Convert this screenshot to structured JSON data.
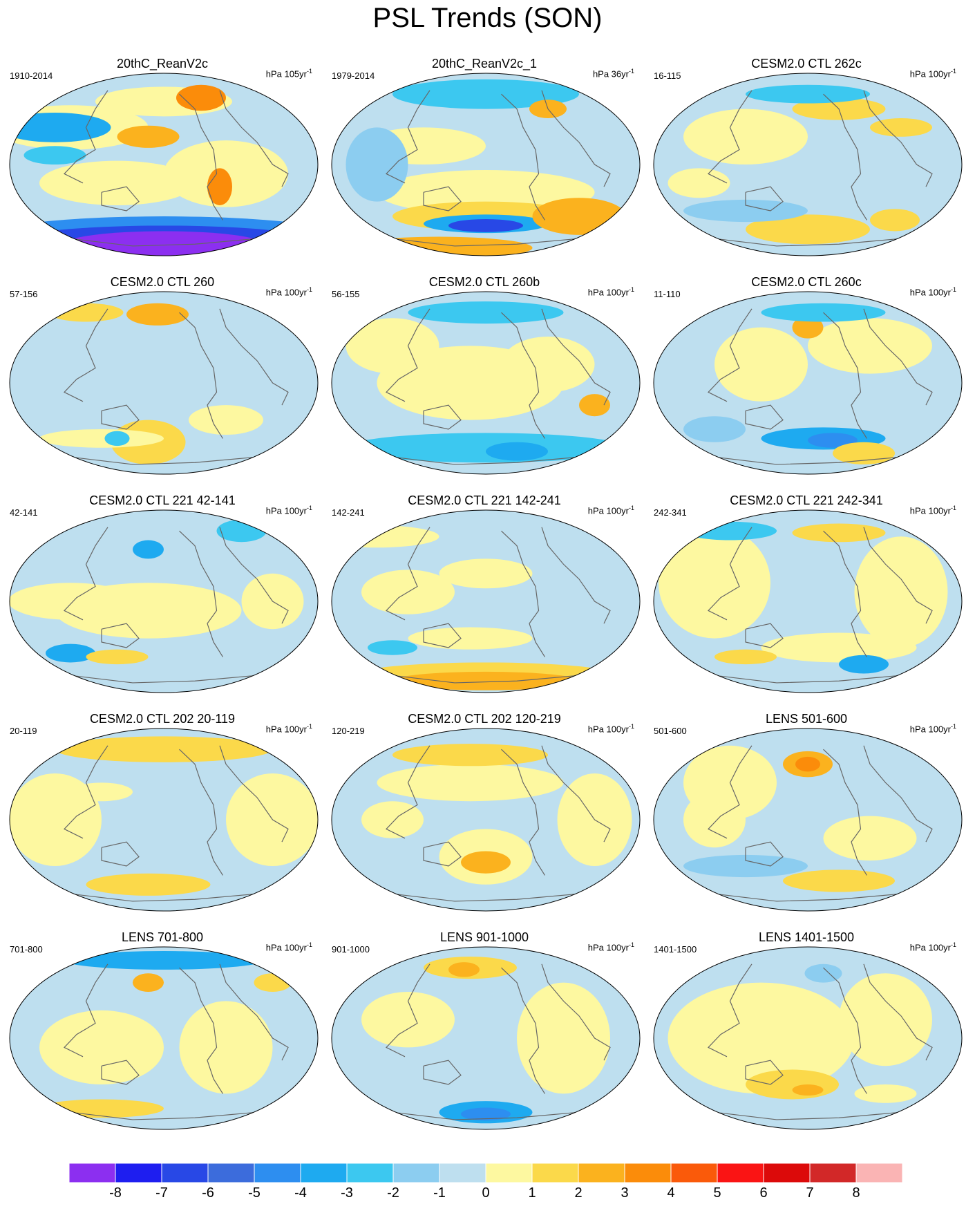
{
  "title": "PSL Trends (SON)",
  "colorbar": {
    "labels": [
      "-8",
      "-7",
      "-6",
      "-5",
      "-4",
      "-3",
      "-2",
      "-1",
      "0",
      "1",
      "2",
      "3",
      "4",
      "5",
      "6",
      "7",
      "8"
    ],
    "colors": [
      "#8c2ff0",
      "#1e1ef0",
      "#2848e6",
      "#3c6cdc",
      "#2d8ef0",
      "#1eaaf0",
      "#3cc8f0",
      "#8ccdf0",
      "#bedfef",
      "#fdf8a0",
      "#fbd94a",
      "#fbb21e",
      "#fb8c0a",
      "#fa5a0a",
      "#fa1414",
      "#dc0a0a",
      "#d22828",
      "#fab4b4"
    ]
  },
  "panels": [
    {
      "title": "20thC_ReanV2c",
      "period": "1910-2014",
      "units": "hPa 105yr",
      "exp": "-1"
    },
    {
      "title": "20thC_ReanV2c_1",
      "period": "1979-2014",
      "units": "hPa 36yr",
      "exp": "-1"
    },
    {
      "title": "CESM2.0 CTL 262c",
      "period": "16-115",
      "units": "hPa 100yr",
      "exp": "-1"
    },
    {
      "title": "CESM2.0 CTL 260",
      "period": "57-156",
      "units": "hPa 100yr",
      "exp": "-1"
    },
    {
      "title": "CESM2.0 CTL 260b",
      "period": "56-155",
      "units": "hPa 100yr",
      "exp": "-1"
    },
    {
      "title": "CESM2.0 CTL 260c",
      "period": "11-110",
      "units": "hPa 100yr",
      "exp": "-1"
    },
    {
      "title": "CESM2.0 CTL 221 42-141",
      "period": "42-141",
      "units": "hPa 100yr",
      "exp": "-1"
    },
    {
      "title": "CESM2.0 CTL 221 142-241",
      "period": "142-241",
      "units": "hPa 100yr",
      "exp": "-1"
    },
    {
      "title": "CESM2.0 CTL 221 242-341",
      "period": "242-341",
      "units": "hPa 100yr",
      "exp": "-1"
    },
    {
      "title": "CESM2.0 CTL 202 20-119",
      "period": "20-119",
      "units": "hPa 100yr",
      "exp": "-1"
    },
    {
      "title": "CESM2.0 CTL 202 120-219",
      "period": "120-219",
      "units": "hPa 100yr",
      "exp": "-1"
    },
    {
      "title": "LENS 501-600",
      "period": "501-600",
      "units": "hPa 100yr",
      "exp": "-1"
    },
    {
      "title": "LENS 701-800",
      "period": "701-800",
      "units": "hPa 100yr",
      "exp": "-1"
    },
    {
      "title": "LENS 901-1000",
      "period": "901-1000",
      "units": "hPa 100yr",
      "exp": "-1"
    },
    {
      "title": "LENS 1401-1500",
      "period": "1401-1500",
      "units": "hPa 100yr",
      "exp": "-1"
    }
  ]
}
